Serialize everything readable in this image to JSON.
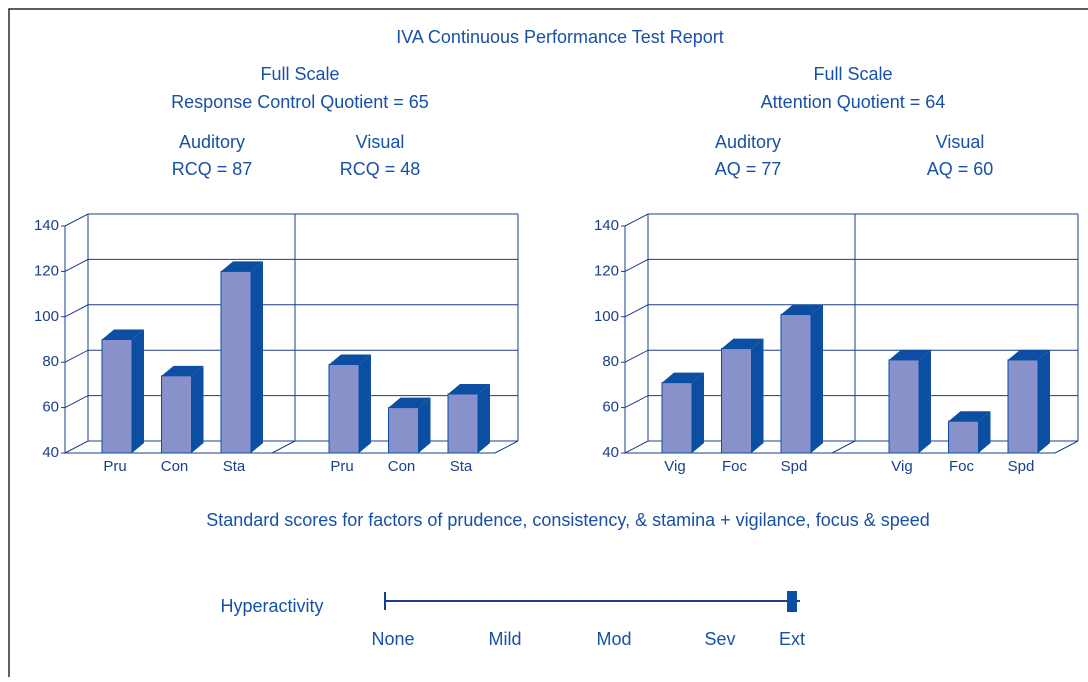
{
  "title": "IVA Continuous Performance Test Report",
  "chart_data": [
    {
      "type": "bar",
      "heading": [
        "Full Scale",
        "Response Control Quotient = 65"
      ],
      "groups": [
        {
          "name": "Auditory",
          "label": "RCQ = 87",
          "categories": [
            "Pru",
            "Con",
            "Sta"
          ],
          "values": [
            90,
            74,
            120
          ]
        },
        {
          "name": "Visual",
          "label": "RCQ = 48",
          "categories": [
            "Pru",
            "Con",
            "Sta"
          ],
          "values": [
            79,
            60,
            66
          ]
        }
      ],
      "ylim": [
        40,
        140
      ],
      "yticks": [
        40,
        60,
        80,
        100,
        120,
        140
      ],
      "grid": true,
      "color": "#8891c9",
      "edge_color": "#0b4ea2"
    },
    {
      "type": "bar",
      "heading": [
        "Full Scale",
        "Attention Quotient = 64"
      ],
      "groups": [
        {
          "name": "Auditory",
          "label": "AQ = 77",
          "categories": [
            "Vig",
            "Foc",
            "Spd"
          ],
          "values": [
            71,
            86,
            101
          ]
        },
        {
          "name": "Visual",
          "label": "AQ = 60",
          "categories": [
            "Vig",
            "Foc",
            "Spd"
          ],
          "values": [
            81,
            54,
            81
          ]
        }
      ],
      "ylim": [
        40,
        140
      ],
      "yticks": [
        40,
        60,
        80,
        100,
        120,
        140
      ],
      "grid": true,
      "color": "#8891c9",
      "edge_color": "#0b4ea2"
    }
  ],
  "caption": "Standard scores for factors of prudence, consistency, & stamina + vigilance, focus & speed",
  "hyperactivity": {
    "label": "Hyperactivity",
    "levels": [
      "None",
      "Mild",
      "Mod",
      "Sev",
      "Ext"
    ],
    "selected": 4
  }
}
